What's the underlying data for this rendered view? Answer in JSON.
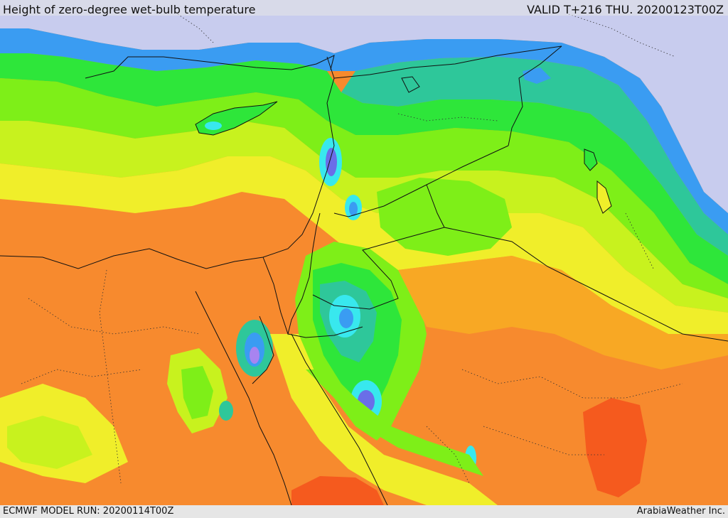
{
  "header": {
    "title": "Height of zero-degree wet-bulb temperature",
    "valid_time": "VALID T+216 THU. 20200123T00Z"
  },
  "footer": {
    "model_run": "ECMWF MODEL RUN: 20200114T00Z",
    "credit": "ArabiaWeather Inc."
  },
  "palette": {
    "sea": "#c8ccee",
    "deep_orange": "#f55a1e",
    "orange": "#f78a2e",
    "light_orange": "#f8a824",
    "yellow": "#f0ee2a",
    "yellow_green": "#c8f21e",
    "green": "#7eef18",
    "bright_green": "#2ee63a",
    "teal": "#2ec79a",
    "cyan": "#38e8ee",
    "blue": "#3a9cf2",
    "indigo": "#6a6ee8",
    "violet": "#a884f0",
    "lavender": "#c8b4f4",
    "border": "#111111"
  }
}
